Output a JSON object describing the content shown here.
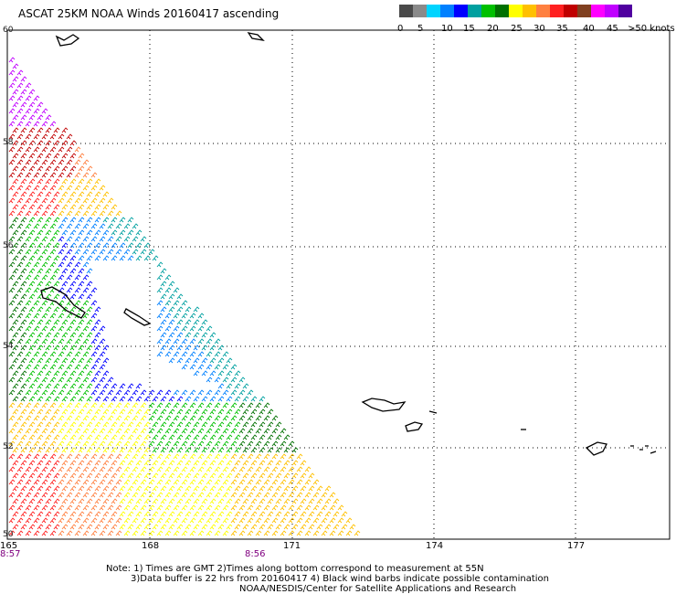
{
  "title": "ASCAT 25KM NOAA Winds 20160417 ascending",
  "colorbar": {
    "colors": [
      "#4a4a4a",
      "#8a8a8a",
      "#00d4ff",
      "#0080ff",
      "#0000ff",
      "#00a0a0",
      "#00c000",
      "#007000",
      "#ffff00",
      "#ffc000",
      "#ff8040",
      "#ff2020",
      "#c00000",
      "#804020",
      "#ff00ff",
      "#c000ff",
      "#5000a0"
    ],
    "labels": [
      "0",
      "5",
      "10",
      "15",
      "20",
      "25",
      "30",
      "35",
      "40",
      "45",
      ">50 knots"
    ]
  },
  "lat_labels": [
    "60",
    "58",
    "56",
    "54",
    "52",
    "50"
  ],
  "lon_labels": [
    "165",
    "168",
    "171",
    "174",
    "177"
  ],
  "time_labels": [
    "8:57",
    "8:56"
  ],
  "notes": {
    "line1": "Note: 1) Times are GMT 2)Times along bottom correspond to measurement at 55N",
    "line2": "3)Data buffer is 22 hrs from 20160417 4) Black wind barbs indicate possible contamination",
    "line3": "NOAA/NESDIS/Center for Satellite Applications and Research"
  }
}
